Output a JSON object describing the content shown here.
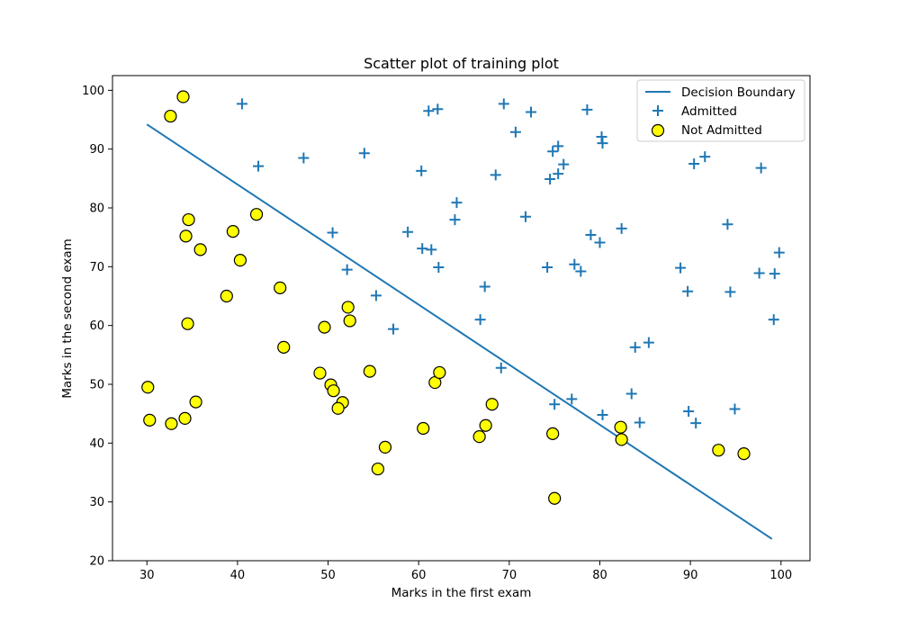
{
  "chart_data": {
    "type": "scatter",
    "title": "Scatter plot of training plot",
    "xlabel": "Marks in the first exam",
    "ylabel": "Marks in the second exam",
    "xlim": [
      26.2,
      103.2
    ],
    "ylim": [
      20,
      102.5
    ],
    "xticks": [
      30,
      40,
      50,
      60,
      70,
      80,
      90,
      100
    ],
    "yticks": [
      20,
      30,
      40,
      50,
      60,
      70,
      80,
      90,
      100
    ],
    "grid": false,
    "legend_position": "top-right",
    "colors": {
      "boundary": "#1f77b4",
      "admitted": "#1f77b4",
      "not_admitted_fill": "#ffff00",
      "not_admitted_edge": "#000000"
    },
    "decision_boundary": {
      "name": "Decision Boundary",
      "x": [
        30.0,
        99.0
      ],
      "y": [
        94.2,
        23.7
      ]
    },
    "series": [
      {
        "name": "Admitted",
        "marker": "plus",
        "points": [
          [
            40.5,
            97.7
          ],
          [
            42.3,
            87.1
          ],
          [
            47.3,
            88.5
          ],
          [
            54.0,
            89.3
          ],
          [
            50.5,
            75.8
          ],
          [
            52.1,
            69.5
          ],
          [
            55.3,
            65.1
          ],
          [
            57.2,
            59.4
          ],
          [
            58.8,
            75.9
          ],
          [
            60.3,
            86.3
          ],
          [
            60.4,
            73.1
          ],
          [
            61.4,
            72.9
          ],
          [
            62.2,
            69.9
          ],
          [
            61.1,
            96.5
          ],
          [
            62.1,
            96.8
          ],
          [
            64.0,
            78.0
          ],
          [
            64.2,
            80.9
          ],
          [
            66.8,
            61.0
          ],
          [
            67.3,
            66.6
          ],
          [
            68.5,
            85.6
          ],
          [
            69.1,
            52.8
          ],
          [
            69.4,
            97.7
          ],
          [
            70.7,
            92.9
          ],
          [
            71.8,
            78.5
          ],
          [
            72.4,
            96.3
          ],
          [
            74.2,
            69.9
          ],
          [
            74.5,
            84.9
          ],
          [
            74.8,
            89.6
          ],
          [
            75.0,
            46.6
          ],
          [
            75.4,
            90.5
          ],
          [
            75.4,
            85.8
          ],
          [
            76.0,
            87.4
          ],
          [
            76.9,
            47.5
          ],
          [
            77.2,
            70.4
          ],
          [
            77.9,
            69.2
          ],
          [
            78.6,
            96.7
          ],
          [
            79.0,
            75.4
          ],
          [
            80.0,
            74.1
          ],
          [
            80.2,
            92.1
          ],
          [
            80.3,
            91.0
          ],
          [
            80.3,
            44.8
          ],
          [
            82.4,
            76.5
          ],
          [
            83.5,
            48.4
          ],
          [
            83.9,
            56.3
          ],
          [
            84.4,
            43.5
          ],
          [
            85.4,
            57.1
          ],
          [
            88.9,
            69.8
          ],
          [
            89.7,
            65.8
          ],
          [
            89.8,
            45.4
          ],
          [
            90.4,
            87.5
          ],
          [
            90.6,
            43.4
          ],
          [
            91.6,
            88.7
          ],
          [
            94.1,
            77.2
          ],
          [
            94.4,
            65.7
          ],
          [
            94.9,
            45.8
          ],
          [
            97.6,
            68.9
          ],
          [
            97.8,
            86.8
          ],
          [
            99.2,
            61.0
          ],
          [
            99.3,
            68.8
          ],
          [
            99.8,
            72.4
          ]
        ]
      },
      {
        "name": "Not Admitted",
        "marker": "circle",
        "points": [
          [
            34.0,
            98.9
          ],
          [
            32.6,
            95.6
          ],
          [
            34.6,
            78.0
          ],
          [
            34.3,
            75.2
          ],
          [
            35.9,
            72.9
          ],
          [
            42.1,
            78.9
          ],
          [
            39.5,
            76.0
          ],
          [
            40.3,
            71.1
          ],
          [
            38.8,
            65.0
          ],
          [
            34.5,
            60.3
          ],
          [
            44.7,
            66.4
          ],
          [
            52.2,
            63.1
          ],
          [
            52.4,
            60.8
          ],
          [
            49.6,
            59.7
          ],
          [
            45.1,
            56.3
          ],
          [
            30.1,
            49.5
          ],
          [
            30.3,
            43.9
          ],
          [
            32.7,
            43.3
          ],
          [
            34.2,
            44.2
          ],
          [
            35.4,
            47.0
          ],
          [
            49.1,
            51.9
          ],
          [
            50.3,
            49.9
          ],
          [
            50.6,
            48.9
          ],
          [
            51.6,
            46.9
          ],
          [
            51.1,
            45.9
          ],
          [
            54.6,
            52.2
          ],
          [
            56.3,
            39.3
          ],
          [
            55.5,
            35.6
          ],
          [
            60.5,
            42.5
          ],
          [
            61.8,
            50.3
          ],
          [
            62.3,
            52.0
          ],
          [
            66.7,
            41.1
          ],
          [
            67.4,
            43.0
          ],
          [
            68.1,
            46.6
          ],
          [
            74.8,
            41.6
          ],
          [
            75.0,
            30.6
          ],
          [
            82.3,
            42.7
          ],
          [
            82.4,
            40.6
          ],
          [
            93.1,
            38.8
          ],
          [
            95.9,
            38.2
          ]
        ]
      }
    ]
  }
}
